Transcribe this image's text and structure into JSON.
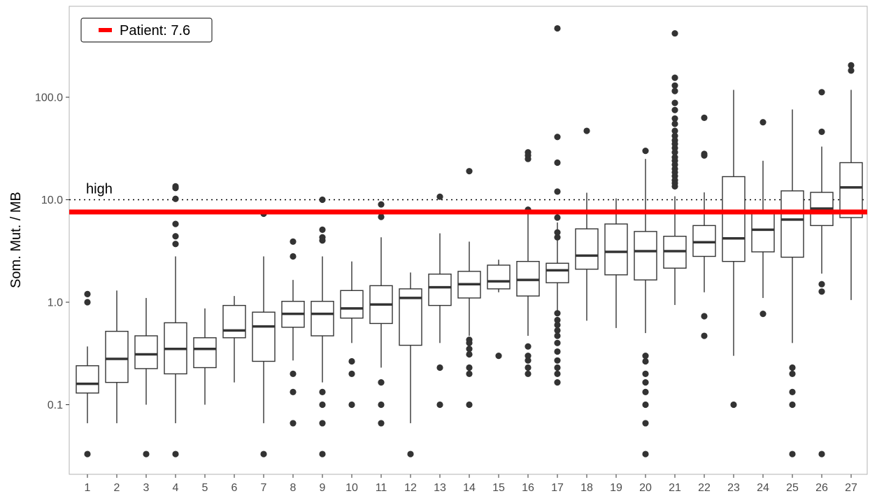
{
  "chart_data": {
    "type": "box",
    "ylabel": "Som. Mut. / MB",
    "xlabel": "",
    "y_scale": "log10",
    "ylim": [
      0.022,
      700
    ],
    "y_ticks": [
      {
        "value": 0.1,
        "label": "0.1"
      },
      {
        "value": 1.0,
        "label": "1.0"
      },
      {
        "value": 10.0,
        "label": "10.0"
      },
      {
        "value": 100.0,
        "label": "100.0"
      }
    ],
    "reference_line": {
      "value": 10.0,
      "label": "high",
      "style": "dotted"
    },
    "patient": {
      "value": 7.6,
      "legend_label": "Patient: 7.6",
      "color": "#ff0000"
    },
    "legend_position": "top-left",
    "grid": false,
    "box_color": "#333333",
    "categories": [
      "1",
      "2",
      "3",
      "4",
      "5",
      "6",
      "7",
      "8",
      "9",
      "10",
      "11",
      "12",
      "13",
      "14",
      "15",
      "16",
      "17",
      "18",
      "19",
      "20",
      "21",
      "22",
      "23",
      "24",
      "25",
      "26",
      "27"
    ],
    "boxes": [
      {
        "whislo": 0.066,
        "q1": 0.13,
        "med": 0.16,
        "q3": 0.24,
        "whishi": 0.37,
        "fliers": [
          1.2,
          1.0,
          0.033
        ]
      },
      {
        "whislo": 0.066,
        "q1": 0.165,
        "med": 0.28,
        "q3": 0.52,
        "whishi": 1.3,
        "fliers": []
      },
      {
        "whislo": 0.1,
        "q1": 0.225,
        "med": 0.31,
        "q3": 0.47,
        "whishi": 1.1,
        "fliers": [
          0.033
        ]
      },
      {
        "whislo": 0.066,
        "q1": 0.2,
        "med": 0.35,
        "q3": 0.63,
        "whishi": 2.8,
        "fliers": [
          13.5,
          13.0,
          10.2,
          5.8,
          4.4,
          3.7,
          0.033
        ]
      },
      {
        "whislo": 0.1,
        "q1": 0.23,
        "med": 0.35,
        "q3": 0.45,
        "whishi": 0.87,
        "fliers": []
      },
      {
        "whislo": 0.165,
        "q1": 0.45,
        "med": 0.53,
        "q3": 0.93,
        "whishi": 1.15,
        "fliers": []
      },
      {
        "whislo": 0.066,
        "q1": 0.265,
        "med": 0.58,
        "q3": 0.8,
        "whishi": 2.8,
        "fliers": [
          7.3,
          0.033
        ]
      },
      {
        "whislo": 0.27,
        "q1": 0.57,
        "med": 0.77,
        "q3": 1.02,
        "whishi": 1.65,
        "fliers": [
          3.9,
          2.8,
          0.2,
          0.133,
          0.066
        ]
      },
      {
        "whislo": 0.165,
        "q1": 0.47,
        "med": 0.77,
        "q3": 1.02,
        "whishi": 2.8,
        "fliers": [
          10.0,
          5.1,
          4.3,
          4.0,
          0.133,
          0.1,
          0.066,
          0.033
        ]
      },
      {
        "whislo": 0.4,
        "q1": 0.7,
        "med": 0.87,
        "q3": 1.3,
        "whishi": 2.5,
        "fliers": [
          0.265,
          0.2,
          0.1
        ]
      },
      {
        "whislo": 0.23,
        "q1": 0.62,
        "med": 0.95,
        "q3": 1.45,
        "whishi": 4.3,
        "fliers": [
          9.0,
          7.5,
          6.8,
          0.165,
          0.1,
          0.066
        ]
      },
      {
        "whislo": 0.066,
        "q1": 0.38,
        "med": 1.1,
        "q3": 1.35,
        "whishi": 1.95,
        "fliers": [
          0.033
        ]
      },
      {
        "whislo": 0.4,
        "q1": 0.93,
        "med": 1.4,
        "q3": 1.88,
        "whishi": 4.7,
        "fliers": [
          10.7,
          0.23,
          0.1
        ]
      },
      {
        "whislo": 0.47,
        "q1": 1.1,
        "med": 1.5,
        "q3": 2.0,
        "whishi": 3.9,
        "fliers": [
          19.0,
          0.43,
          0.4,
          0.35,
          0.31,
          0.23,
          0.2,
          0.1
        ]
      },
      {
        "whislo": 1.25,
        "q1": 1.35,
        "med": 1.6,
        "q3": 2.3,
        "whishi": 2.6,
        "fliers": [
          0.3
        ]
      },
      {
        "whislo": 0.47,
        "q1": 1.15,
        "med": 1.65,
        "q3": 2.5,
        "whishi": 7.6,
        "fliers": [
          29.0,
          27.0,
          25.0,
          8.0,
          0.37,
          0.3,
          0.27,
          0.23,
          0.2
        ]
      },
      {
        "whislo": 0.8,
        "q1": 1.55,
        "med": 2.05,
        "q3": 2.4,
        "whishi": 6.0,
        "fliers": [
          470.0,
          41.0,
          23.0,
          12.0,
          6.7,
          4.8,
          4.3,
          0.78,
          0.67,
          0.6,
          0.53,
          0.47,
          0.4,
          0.33,
          0.27,
          0.23,
          0.2,
          0.165
        ]
      },
      {
        "whislo": 0.66,
        "q1": 2.1,
        "med": 2.85,
        "q3": 5.2,
        "whishi": 11.7,
        "fliers": [
          47.0
        ]
      },
      {
        "whislo": 0.56,
        "q1": 1.85,
        "med": 3.1,
        "q3": 5.8,
        "whishi": 10.3,
        "fliers": []
      },
      {
        "whislo": 0.5,
        "q1": 1.65,
        "med": 3.15,
        "q3": 4.9,
        "whishi": 25.0,
        "fliers": [
          30.0,
          0.3,
          0.265,
          0.2,
          0.165,
          0.133,
          0.1,
          0.066,
          0.033
        ]
      },
      {
        "whislo": 0.94,
        "q1": 2.15,
        "med": 3.15,
        "q3": 4.4,
        "whishi": 10.8,
        "fliers": [
          420.0,
          155.0,
          130.0,
          115.0,
          88.0,
          75.0,
          62.0,
          55.0,
          47.0,
          42.0,
          38.0,
          35.0,
          32.0,
          29.0,
          26.0,
          24.0,
          22.0,
          20.0,
          18.5,
          17.0,
          15.5,
          14.5,
          13.5
        ]
      },
      {
        "whislo": 1.25,
        "q1": 2.8,
        "med": 3.85,
        "q3": 5.6,
        "whishi": 11.8,
        "fliers": [
          63.0,
          28.0,
          27.0,
          0.73,
          0.47
        ]
      },
      {
        "whislo": 0.3,
        "q1": 2.5,
        "med": 4.2,
        "q3": 16.8,
        "whishi": 118.0,
        "fliers": [
          0.1
        ]
      },
      {
        "whislo": 1.1,
        "q1": 3.1,
        "med": 5.1,
        "q3": 7.3,
        "whishi": 24.0,
        "fliers": [
          57.0,
          0.77
        ]
      },
      {
        "whislo": 0.4,
        "q1": 2.75,
        "med": 6.4,
        "q3": 12.2,
        "whishi": 76.0,
        "fliers": [
          0.23,
          0.2,
          0.133,
          0.1,
          0.033
        ]
      },
      {
        "whislo": 1.9,
        "q1": 5.6,
        "med": 8.2,
        "q3": 11.8,
        "whishi": 33.0,
        "fliers": [
          112.0,
          46.0,
          1.5,
          1.27,
          0.033
        ]
      },
      {
        "whislo": 1.05,
        "q1": 6.7,
        "med": 13.2,
        "q3": 23.0,
        "whishi": 118.0,
        "fliers": [
          205.0,
          182.0
        ]
      }
    ]
  }
}
